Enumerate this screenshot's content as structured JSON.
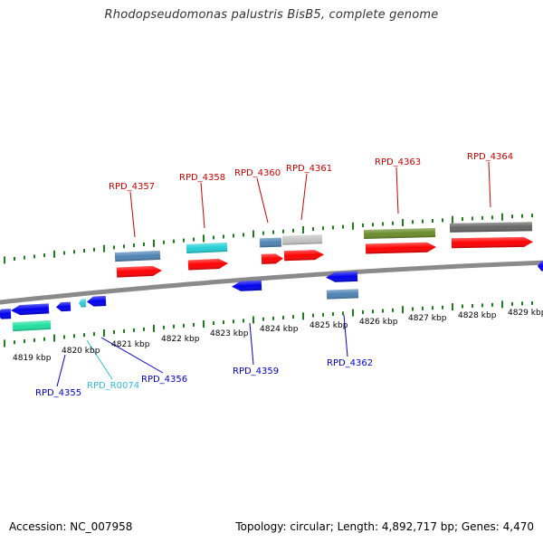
{
  "title": "Rhodopseudomonas palustris BisB5, complete genome",
  "footer": {
    "accession": "Accession: NC_007958",
    "summary": "Topology: circular; Length: 4,892,717 bp; Genes: 4,470"
  },
  "colors": {
    "backbone": "#8a8a8a",
    "tick": "#1e7d1e",
    "label_plus": "#cc0000",
    "label_minus": "#0000cc",
    "label_rna": "#33bbdd",
    "arrow_red": "#ff0000",
    "arrow_blue": "#0000ee",
    "steelblue": "#4f83b4",
    "cyan": "#22d0d6",
    "green": "#6a8c2a",
    "darkgray": "#666666",
    "lightgray": "#c4c4c4",
    "aquamarine": "#22e0a0",
    "rna_cyan": "#33ccdd"
  },
  "scale_labels": [
    {
      "kbp": 4819,
      "text": "4819 kbp"
    },
    {
      "kbp": 4820,
      "text": "4820 kbp"
    },
    {
      "kbp": 4821,
      "text": "4821 kbp"
    },
    {
      "kbp": 4822,
      "text": "4822 kbp"
    },
    {
      "kbp": 4823,
      "text": "4823 kbp"
    },
    {
      "kbp": 4824,
      "text": "4824 kbp"
    },
    {
      "kbp": 4825,
      "text": "4825 kbp"
    },
    {
      "kbp": 4826,
      "text": "4826 kbp"
    },
    {
      "kbp": 4827,
      "text": "4827 kbp"
    },
    {
      "kbp": 4828,
      "text": "4828 kbp"
    },
    {
      "kbp": 4829,
      "text": "4829 kbp"
    }
  ],
  "gene_labels": [
    {
      "id": "RPD_4357",
      "strand": "plus"
    },
    {
      "id": "RPD_4358",
      "strand": "plus"
    },
    {
      "id": "RPD_4360",
      "strand": "plus"
    },
    {
      "id": "RPD_4361",
      "strand": "plus"
    },
    {
      "id": "RPD_4363",
      "strand": "plus"
    },
    {
      "id": "RPD_4364",
      "strand": "plus"
    },
    {
      "id": "RPD_4355",
      "strand": "minus"
    },
    {
      "id": "RPD_R0074",
      "strand": "rna"
    },
    {
      "id": "RPD_4356",
      "strand": "minus"
    },
    {
      "id": "RPD_4359",
      "strand": "minus"
    },
    {
      "id": "RPD_4362",
      "strand": "minus"
    }
  ]
}
